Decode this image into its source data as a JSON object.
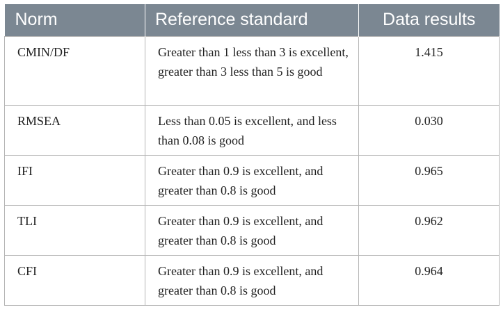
{
  "table": {
    "headers": [
      "Norm",
      "Reference standard",
      "Data results"
    ],
    "rows": [
      {
        "norm": "CMIN/DF",
        "reference": "Greater than 1 less than 3 is excellent, greater than 3 less than 5 is good",
        "result": "1.415"
      },
      {
        "norm": "RMSEA",
        "reference": "Less than 0.05 is excellent, and less than 0.08 is good",
        "result": "0.030"
      },
      {
        "norm": "IFI",
        "reference": "Greater than 0.9 is excellent, and greater than 0.8 is good",
        "result": "0.965"
      },
      {
        "norm": "TLI",
        "reference": "Greater than 0.9 is excellent, and greater than 0.8 is good",
        "result": "0.962"
      },
      {
        "norm": "CFI",
        "reference": "Greater than 0.9 is excellent, and greater than 0.8 is good",
        "result": "0.964"
      }
    ]
  },
  "colors": {
    "header_bg": "#7b8792",
    "header_text": "#ffffff",
    "border": "#b5b5b5"
  }
}
